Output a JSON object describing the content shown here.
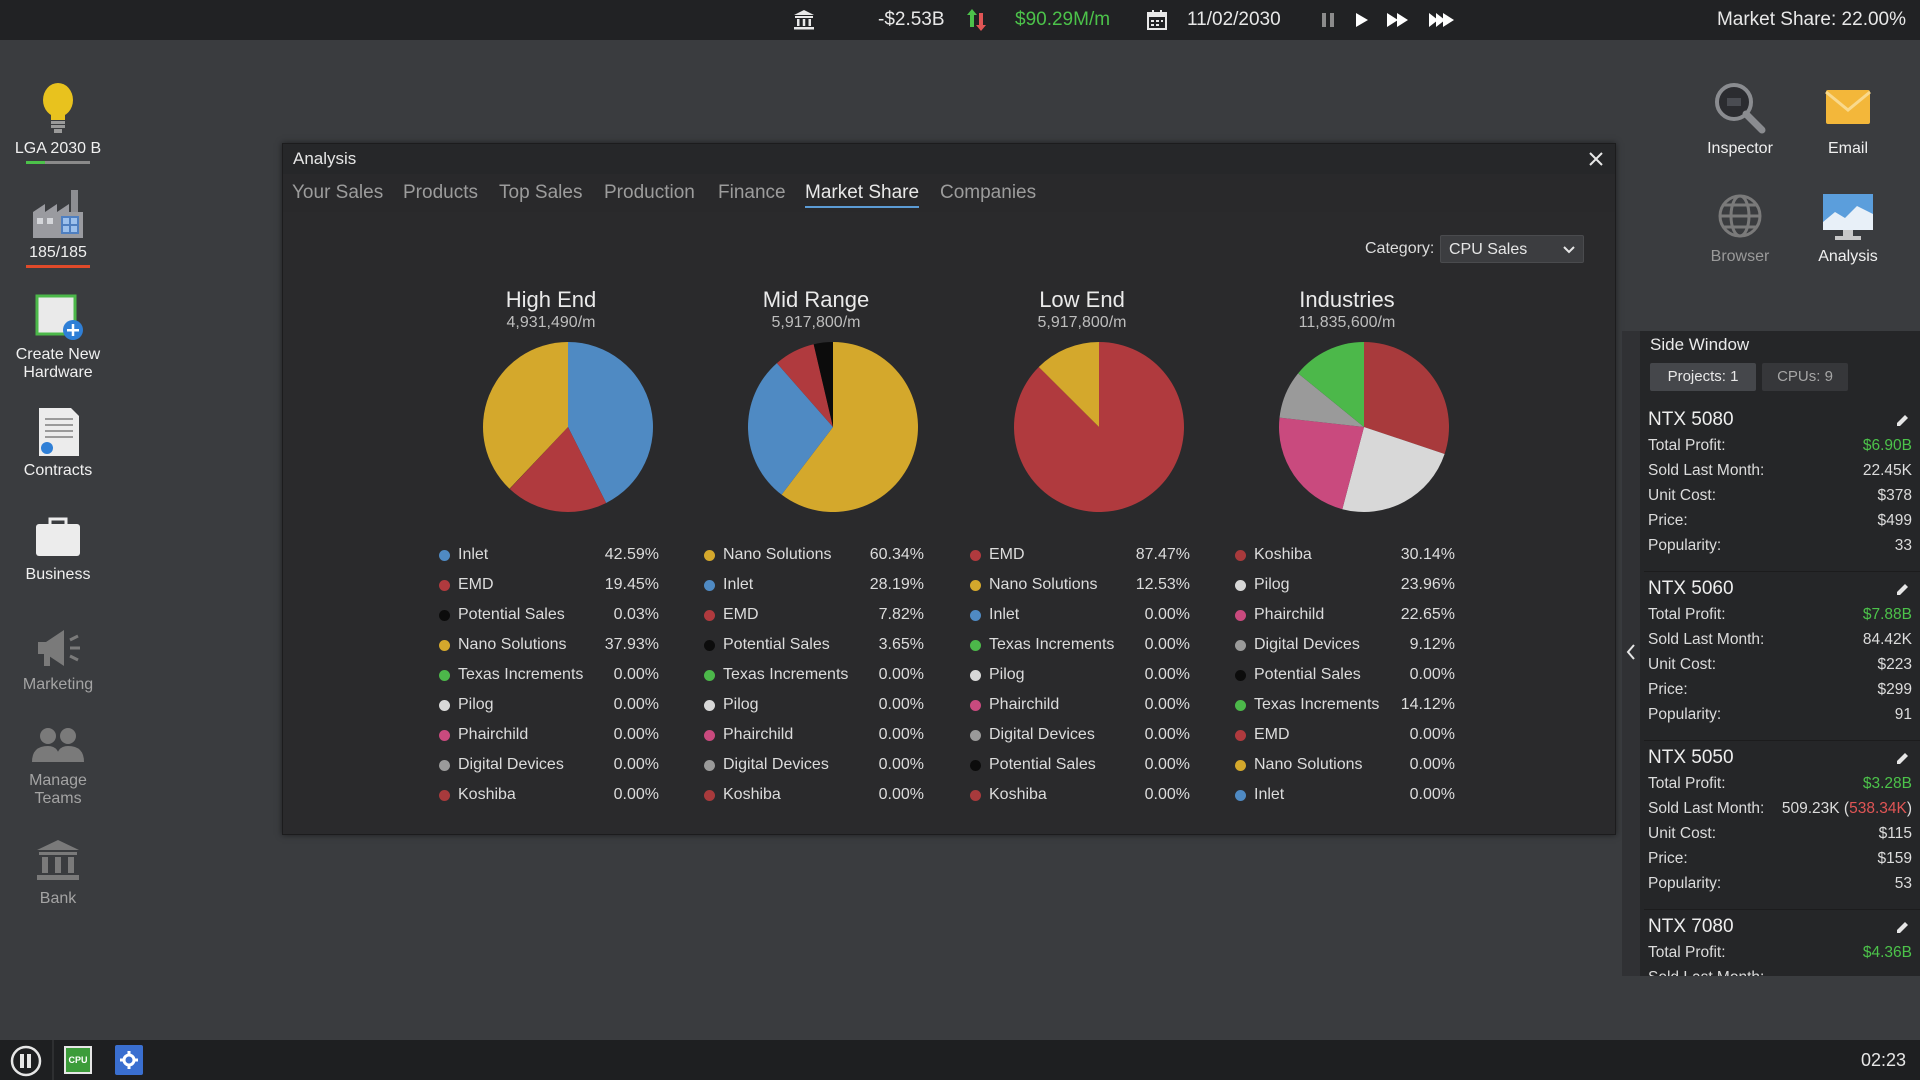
{
  "topbar": {
    "balance": "-$2.53B",
    "income": "$90.29M/m",
    "date": "11/02/2030",
    "market_share": "Market Share: 22.00%"
  },
  "desktop": {
    "left_icons": [
      {
        "label": "LGA 2030 B",
        "icon": "lightbulb-icon"
      },
      {
        "label": "185/185",
        "icon": "factory-icon"
      },
      {
        "label": "Create New Hardware",
        "icon": "create-hardware-icon"
      },
      {
        "label": "Contracts",
        "icon": "contracts-icon"
      },
      {
        "label": "Business",
        "icon": "briefcase-icon"
      },
      {
        "label": "Marketing",
        "icon": "megaphone-icon"
      },
      {
        "label": "Manage Teams",
        "icon": "teams-icon"
      },
      {
        "label": "Bank",
        "icon": "bank-icon"
      }
    ],
    "right_icons": [
      {
        "label": "Inspector",
        "icon": "magnifier-icon"
      },
      {
        "label": "Email",
        "icon": "envelope-icon"
      },
      {
        "label": "Browser",
        "icon": "globe-icon"
      },
      {
        "label": "Analysis",
        "icon": "analysis-monitor-icon"
      }
    ]
  },
  "analysis": {
    "title": "Analysis",
    "tabs": [
      "Your Sales",
      "Products",
      "Top Sales",
      "Production",
      "Finance",
      "Market Share",
      "Companies"
    ],
    "active_tab": "Market Share",
    "category_label": "Category:",
    "category_value": "CPU Sales"
  },
  "colors": {
    "Inlet": "#4f8ac3",
    "EMD": "#b03a3e",
    "Potential Sales": "#0c0c0c",
    "Nano Solutions": "#d4a82c",
    "Texas Increments": "#4cb84a",
    "Pilog": "#d8d8d8",
    "Phairchild": "#c94a7e",
    "Digital Devices": "#9a9a9a",
    "Koshiba": "#a83a3c"
  },
  "chart_data": [
    {
      "type": "pie",
      "title": "High End",
      "subtitle": "4,931,490/m",
      "slices": [
        {
          "name": "Inlet",
          "value": 42.59
        },
        {
          "name": "EMD",
          "value": 19.45
        },
        {
          "name": "Potential Sales",
          "value": 0.03
        },
        {
          "name": "Nano Solutions",
          "value": 37.93
        },
        {
          "name": "Texas Increments",
          "value": 0.0
        },
        {
          "name": "Pilog",
          "value": 0.0
        },
        {
          "name": "Phairchild",
          "value": 0.0
        },
        {
          "name": "Digital Devices",
          "value": 0.0
        },
        {
          "name": "Koshiba",
          "value": 0.0
        }
      ]
    },
    {
      "type": "pie",
      "title": "Mid Range",
      "subtitle": "5,917,800/m",
      "slices": [
        {
          "name": "Nano Solutions",
          "value": 60.34
        },
        {
          "name": "Inlet",
          "value": 28.19
        },
        {
          "name": "EMD",
          "value": 7.82
        },
        {
          "name": "Potential Sales",
          "value": 3.65
        },
        {
          "name": "Texas Increments",
          "value": 0.0
        },
        {
          "name": "Pilog",
          "value": 0.0
        },
        {
          "name": "Phairchild",
          "value": 0.0
        },
        {
          "name": "Digital Devices",
          "value": 0.0
        },
        {
          "name": "Koshiba",
          "value": 0.0
        }
      ]
    },
    {
      "type": "pie",
      "title": "Low End",
      "subtitle": "5,917,800/m",
      "slices": [
        {
          "name": "EMD",
          "value": 87.47
        },
        {
          "name": "Nano Solutions",
          "value": 12.53
        },
        {
          "name": "Inlet",
          "value": 0.0
        },
        {
          "name": "Texas Increments",
          "value": 0.0
        },
        {
          "name": "Pilog",
          "value": 0.0
        },
        {
          "name": "Phairchild",
          "value": 0.0
        },
        {
          "name": "Digital Devices",
          "value": 0.0
        },
        {
          "name": "Potential Sales",
          "value": 0.0
        },
        {
          "name": "Koshiba",
          "value": 0.0
        }
      ]
    },
    {
      "type": "pie",
      "title": "Industries",
      "subtitle": "11,835,600/m",
      "slices": [
        {
          "name": "Koshiba",
          "value": 30.14
        },
        {
          "name": "Pilog",
          "value": 23.96
        },
        {
          "name": "Phairchild",
          "value": 22.65
        },
        {
          "name": "Digital Devices",
          "value": 9.12
        },
        {
          "name": "Potential Sales",
          "value": 0.0
        },
        {
          "name": "Texas Increments",
          "value": 14.12
        },
        {
          "name": "EMD",
          "value": 0.0
        },
        {
          "name": "Nano Solutions",
          "value": 0.0
        },
        {
          "name": "Inlet",
          "value": 0.0
        }
      ]
    }
  ],
  "side_window": {
    "title": "Side Window",
    "projects_btn": "Projects: 1",
    "cpus_btn": "CPUs: 9",
    "labels": {
      "profit": "Total Profit:",
      "sold": "Sold Last Month:",
      "cost": "Unit Cost:",
      "price": "Price:",
      "popularity": "Popularity:"
    },
    "products": [
      {
        "name": "NTX 5080",
        "profit": "$6.90B",
        "sold": "22.45K",
        "sold_extra": "",
        "cost": "$378",
        "price": "$499",
        "popularity": "33"
      },
      {
        "name": "NTX 5060",
        "profit": "$7.88B",
        "sold": "84.42K",
        "sold_extra": "",
        "cost": "$223",
        "price": "$299",
        "popularity": "91"
      },
      {
        "name": "NTX 5050",
        "profit": "$3.28B",
        "sold": "509.23K",
        "sold_extra": "538.34K",
        "cost": "$115",
        "price": "$159",
        "popularity": "53"
      },
      {
        "name": "NTX 7080",
        "profit": "$4.36B",
        "sold": "",
        "sold_extra": "",
        "cost": "",
        "price": "",
        "popularity": ""
      }
    ]
  },
  "taskbar": {
    "time": "02:23",
    "cpu_label": "CPU"
  }
}
